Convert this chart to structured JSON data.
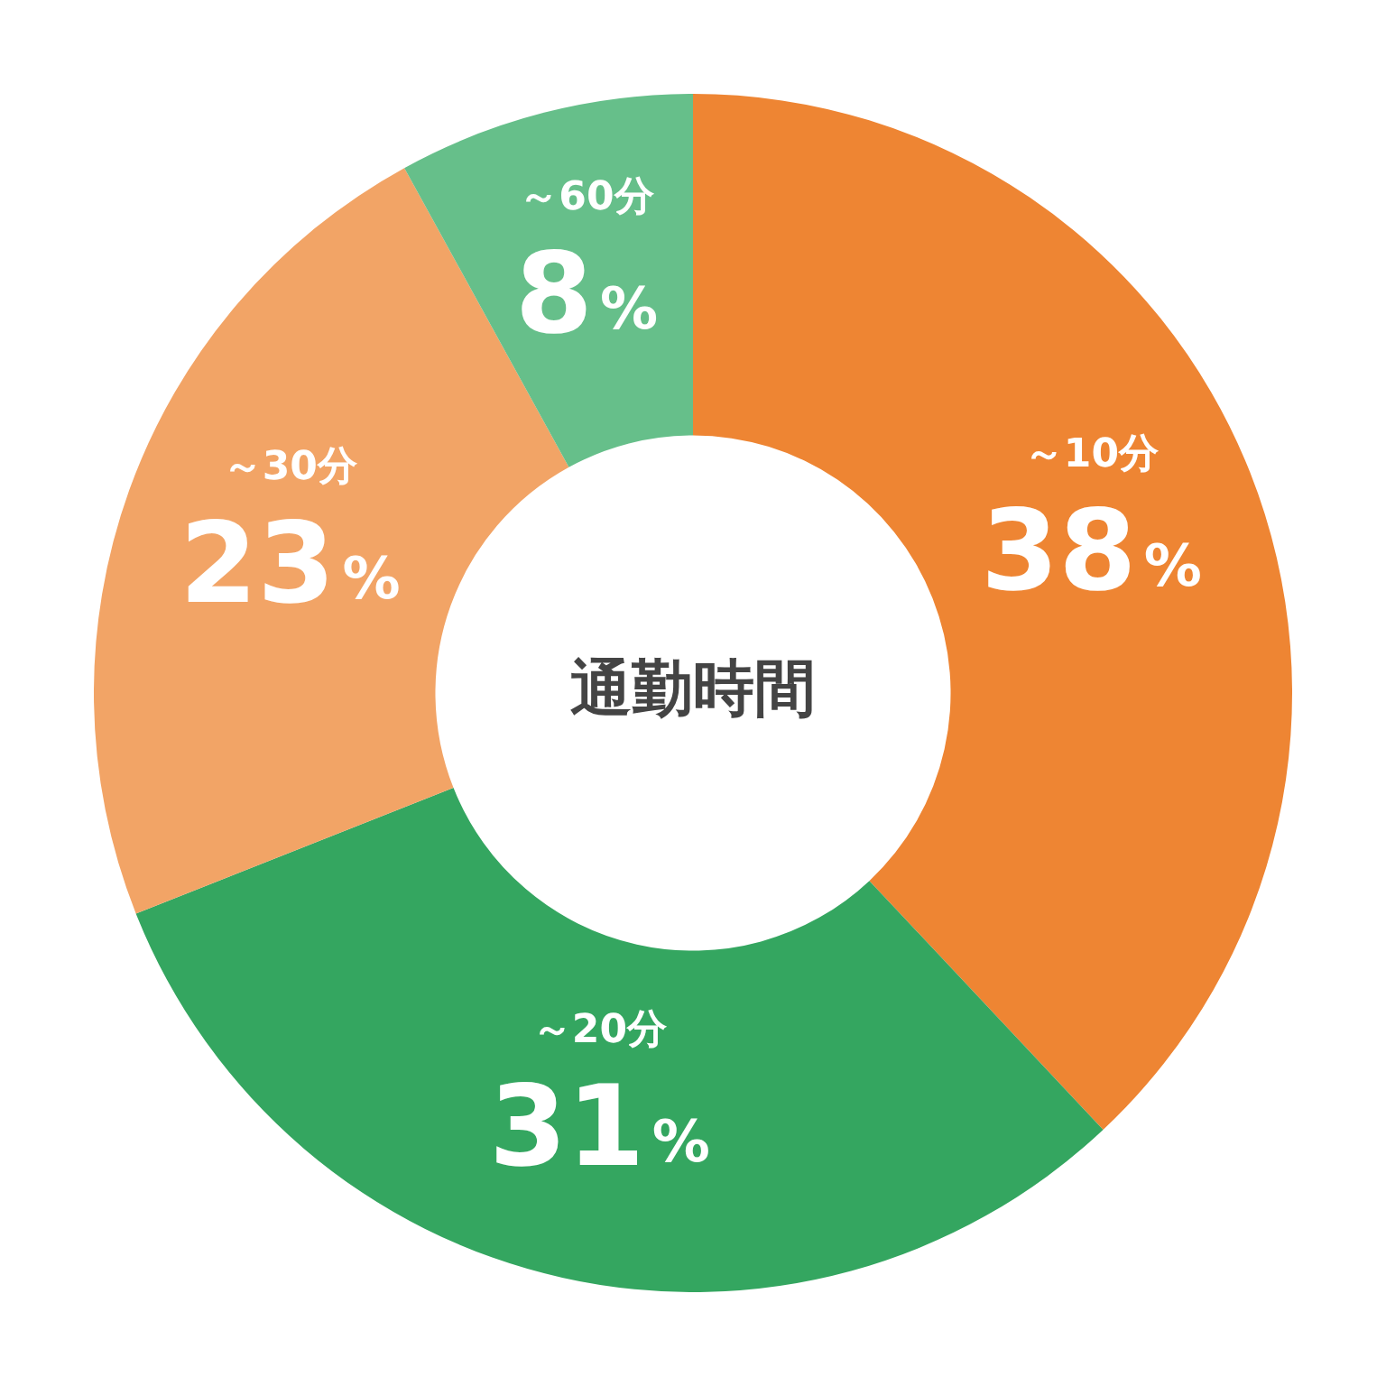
{
  "chart_data": {
    "type": "donut",
    "title": "通勤時間",
    "categories": [
      "～10分",
      "～20分",
      "～30分",
      "～60分"
    ],
    "values": [
      38,
      31,
      23,
      8
    ],
    "colors": [
      "#ee8533",
      "#34a660",
      "#f2a466",
      "#66bf8a"
    ],
    "value_labels": [
      "38%",
      "31%",
      "23%",
      "8%"
    ],
    "legend": false
  }
}
